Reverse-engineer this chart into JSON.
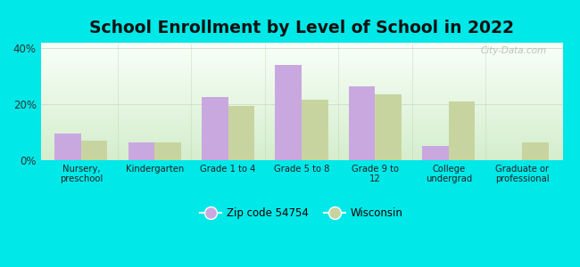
{
  "title": "School Enrollment by Level of School in 2022",
  "categories": [
    "Nursery,\npreschool",
    "Kindergarten",
    "Grade 1 to 4",
    "Grade 5 to 8",
    "Grade 9 to\n12",
    "College\nundergrad",
    "Graduate or\nprofessional"
  ],
  "zip_values": [
    9.5,
    6.5,
    22.5,
    34.0,
    26.5,
    5.0,
    0.0
  ],
  "wi_values": [
    7.0,
    6.5,
    19.5,
    21.5,
    23.5,
    21.0,
    6.5
  ],
  "zip_color": "#c9a8e0",
  "wi_color": "#c8d4a0",
  "background_outer": "#00e8e8",
  "background_inner_top": "#f8fff8",
  "background_inner_bottom": "#d4edcc",
  "ylim": [
    0,
    42
  ],
  "yticks": [
    0,
    20,
    40
  ],
  "ytick_labels": [
    "0%",
    "20%",
    "40%"
  ],
  "legend_zip_label": "Zip code 54754",
  "legend_wi_label": "Wisconsin",
  "watermark": "City-Data.com",
  "bar_width": 0.36,
  "title_fontsize": 13.5
}
